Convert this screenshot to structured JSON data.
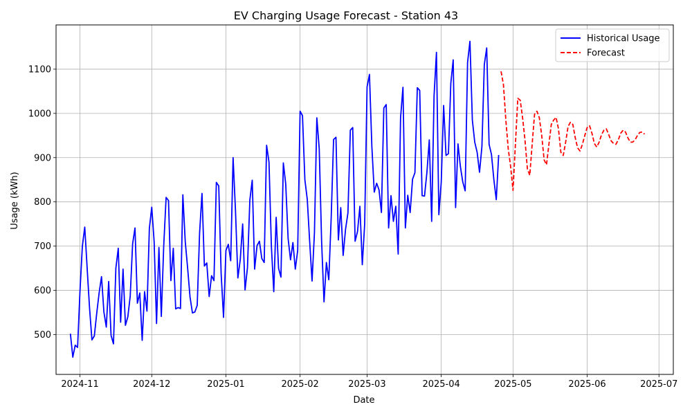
{
  "chart_data": {
    "type": "line",
    "title": "EV Charging Usage Forecast - Station 43",
    "xlabel": "Date",
    "ylabel": "Usage (kWh)",
    "x_ticks": [
      "2024-11-01",
      "2024-12-01",
      "2025-01-01",
      "2025-02-01",
      "2025-03-01",
      "2025-04-01",
      "2025-05-01",
      "2025-06-01",
      "2025-07-01"
    ],
    "x_tick_labels": [
      "2024-11",
      "2024-12",
      "2025-01",
      "2025-02",
      "2025-03",
      "2025-04",
      "2025-05",
      "2025-06",
      "2025-07"
    ],
    "y_ticks": [
      500,
      600,
      700,
      800,
      900,
      1000,
      1100
    ],
    "xlim": [
      "2024-10-22",
      "2025-07-07"
    ],
    "ylim": [
      410,
      1200
    ],
    "grid": true,
    "legend_position": "top-right",
    "series": [
      {
        "name": "Historical Usage",
        "color": "#0000ff",
        "style": "solid",
        "points": [
          [
            "2024-10-28",
            502
          ],
          [
            "2024-10-29",
            449
          ],
          [
            "2024-10-30",
            476
          ],
          [
            "2024-10-31",
            471
          ],
          [
            "2024-11-01",
            598
          ],
          [
            "2024-11-02",
            700
          ],
          [
            "2024-11-03",
            743
          ],
          [
            "2024-11-04",
            650
          ],
          [
            "2024-11-05",
            560
          ],
          [
            "2024-11-06",
            488
          ],
          [
            "2024-11-07",
            497
          ],
          [
            "2024-11-08",
            548
          ],
          [
            "2024-11-09",
            594
          ],
          [
            "2024-11-10",
            631
          ],
          [
            "2024-11-11",
            551
          ],
          [
            "2024-11-12",
            517
          ],
          [
            "2024-11-13",
            620
          ],
          [
            "2024-11-14",
            498
          ],
          [
            "2024-11-15",
            479
          ],
          [
            "2024-11-16",
            650
          ],
          [
            "2024-11-17",
            695
          ],
          [
            "2024-11-18",
            528
          ],
          [
            "2024-11-19",
            648
          ],
          [
            "2024-11-20",
            521
          ],
          [
            "2024-11-21",
            540
          ],
          [
            "2024-11-22",
            587
          ],
          [
            "2024-11-23",
            705
          ],
          [
            "2024-11-24",
            741
          ],
          [
            "2024-11-25",
            571
          ],
          [
            "2024-11-26",
            594
          ],
          [
            "2024-11-27",
            487
          ],
          [
            "2024-11-28",
            597
          ],
          [
            "2024-11-29",
            553
          ],
          [
            "2024-11-30",
            740
          ],
          [
            "2024-12-01",
            788
          ],
          [
            "2024-12-02",
            710
          ],
          [
            "2024-12-03",
            525
          ],
          [
            "2024-12-04",
            697
          ],
          [
            "2024-12-05",
            541
          ],
          [
            "2024-12-06",
            700
          ],
          [
            "2024-12-07",
            810
          ],
          [
            "2024-12-08",
            803
          ],
          [
            "2024-12-09",
            622
          ],
          [
            "2024-12-10",
            695
          ],
          [
            "2024-12-11",
            558
          ],
          [
            "2024-12-12",
            561
          ],
          [
            "2024-12-13",
            559
          ],
          [
            "2024-12-14",
            816
          ],
          [
            "2024-12-15",
            710
          ],
          [
            "2024-12-16",
            650
          ],
          [
            "2024-12-17",
            585
          ],
          [
            "2024-12-18",
            549
          ],
          [
            "2024-12-19",
            551
          ],
          [
            "2024-12-20",
            566
          ],
          [
            "2024-12-21",
            730
          ],
          [
            "2024-12-22",
            819
          ],
          [
            "2024-12-23",
            655
          ],
          [
            "2024-12-24",
            662
          ],
          [
            "2024-12-25",
            586
          ],
          [
            "2024-12-26",
            633
          ],
          [
            "2024-12-27",
            622
          ],
          [
            "2024-12-28",
            844
          ],
          [
            "2024-12-29",
            836
          ],
          [
            "2024-12-30",
            638
          ],
          [
            "2024-12-31",
            539
          ],
          [
            "2025-01-01",
            690
          ],
          [
            "2025-01-02",
            704
          ],
          [
            "2025-01-03",
            667
          ],
          [
            "2025-01-04",
            900
          ],
          [
            "2025-01-05",
            780
          ],
          [
            "2025-01-06",
            628
          ],
          [
            "2025-01-07",
            670
          ],
          [
            "2025-01-08",
            750
          ],
          [
            "2025-01-09",
            601
          ],
          [
            "2025-01-10",
            651
          ],
          [
            "2025-01-11",
            804
          ],
          [
            "2025-01-12",
            849
          ],
          [
            "2025-01-13",
            648
          ],
          [
            "2025-01-14",
            701
          ],
          [
            "2025-01-15",
            711
          ],
          [
            "2025-01-16",
            672
          ],
          [
            "2025-01-17",
            663
          ],
          [
            "2025-01-18",
            928
          ],
          [
            "2025-01-19",
            890
          ],
          [
            "2025-01-20",
            700
          ],
          [
            "2025-01-21",
            597
          ],
          [
            "2025-01-22",
            765
          ],
          [
            "2025-01-23",
            650
          ],
          [
            "2025-01-24",
            630
          ],
          [
            "2025-01-25",
            888
          ],
          [
            "2025-01-26",
            840
          ],
          [
            "2025-01-27",
            717
          ],
          [
            "2025-01-28",
            669
          ],
          [
            "2025-01-29",
            708
          ],
          [
            "2025-01-30",
            648
          ],
          [
            "2025-01-31",
            690
          ],
          [
            "2025-02-01",
            1005
          ],
          [
            "2025-02-02",
            995
          ],
          [
            "2025-02-03",
            850
          ],
          [
            "2025-02-04",
            806
          ],
          [
            "2025-02-05",
            711
          ],
          [
            "2025-02-06",
            621
          ],
          [
            "2025-02-07",
            730
          ],
          [
            "2025-02-08",
            990
          ],
          [
            "2025-02-09",
            920
          ],
          [
            "2025-02-10",
            710
          ],
          [
            "2025-02-11",
            574
          ],
          [
            "2025-02-12",
            663
          ],
          [
            "2025-02-13",
            624
          ],
          [
            "2025-02-14",
            764
          ],
          [
            "2025-02-15",
            941
          ],
          [
            "2025-02-16",
            946
          ],
          [
            "2025-02-17",
            714
          ],
          [
            "2025-02-18",
            787
          ],
          [
            "2025-02-19",
            679
          ],
          [
            "2025-02-20",
            738
          ],
          [
            "2025-02-21",
            775
          ],
          [
            "2025-02-22",
            962
          ],
          [
            "2025-02-23",
            968
          ],
          [
            "2025-02-24",
            711
          ],
          [
            "2025-02-25",
            733
          ],
          [
            "2025-02-26",
            790
          ],
          [
            "2025-02-27",
            658
          ],
          [
            "2025-02-28",
            750
          ],
          [
            "2025-03-01",
            1060
          ],
          [
            "2025-03-02",
            1088
          ],
          [
            "2025-03-03",
            925
          ],
          [
            "2025-03-04",
            822
          ],
          [
            "2025-03-05",
            842
          ],
          [
            "2025-03-06",
            827
          ],
          [
            "2025-03-07",
            776
          ],
          [
            "2025-03-08",
            1012
          ],
          [
            "2025-03-09",
            1020
          ],
          [
            "2025-03-10",
            741
          ],
          [
            "2025-03-11",
            814
          ],
          [
            "2025-03-12",
            756
          ],
          [
            "2025-03-13",
            790
          ],
          [
            "2025-03-14",
            682
          ],
          [
            "2025-03-15",
            990
          ],
          [
            "2025-03-16",
            1059
          ],
          [
            "2025-03-17",
            741
          ],
          [
            "2025-03-18",
            815
          ],
          [
            "2025-03-19",
            776
          ],
          [
            "2025-03-20",
            851
          ],
          [
            "2025-03-21",
            866
          ],
          [
            "2025-03-22",
            1058
          ],
          [
            "2025-03-23",
            1052
          ],
          [
            "2025-03-24",
            814
          ],
          [
            "2025-03-25",
            813
          ],
          [
            "2025-03-26",
            866
          ],
          [
            "2025-03-27",
            940
          ],
          [
            "2025-03-28",
            756
          ],
          [
            "2025-03-29",
            1040
          ],
          [
            "2025-03-30",
            1138
          ],
          [
            "2025-03-31",
            771
          ],
          [
            "2025-04-01",
            845
          ],
          [
            "2025-04-02",
            1018
          ],
          [
            "2025-04-03",
            905
          ],
          [
            "2025-04-04",
            909
          ],
          [
            "2025-04-05",
            1068
          ],
          [
            "2025-04-06",
            1121
          ],
          [
            "2025-04-07",
            787
          ],
          [
            "2025-04-08",
            931
          ],
          [
            "2025-04-09",
            880
          ],
          [
            "2025-04-10",
            845
          ],
          [
            "2025-04-11",
            825
          ],
          [
            "2025-04-12",
            1115
          ],
          [
            "2025-04-13",
            1163
          ],
          [
            "2025-04-14",
            985
          ],
          [
            "2025-04-15",
            935
          ],
          [
            "2025-04-16",
            912
          ],
          [
            "2025-04-17",
            867
          ],
          [
            "2025-04-18",
            925
          ],
          [
            "2025-04-19",
            1110
          ],
          [
            "2025-04-20",
            1148
          ],
          [
            "2025-04-21",
            930
          ],
          [
            "2025-04-22",
            907
          ],
          [
            "2025-04-23",
            850
          ],
          [
            "2025-04-24",
            805
          ],
          [
            "2025-04-25",
            906
          ]
        ]
      },
      {
        "name": "Forecast",
        "color": "#ff0000",
        "style": "dashed",
        "points": [
          [
            "2025-04-26",
            1095
          ],
          [
            "2025-04-27",
            1065
          ],
          [
            "2025-04-28",
            985
          ],
          [
            "2025-04-29",
            920
          ],
          [
            "2025-04-30",
            880
          ],
          [
            "2025-05-01",
            826
          ],
          [
            "2025-05-02",
            930
          ],
          [
            "2025-05-03",
            1034
          ],
          [
            "2025-05-04",
            1030
          ],
          [
            "2025-05-05",
            990
          ],
          [
            "2025-05-06",
            940
          ],
          [
            "2025-05-07",
            875
          ],
          [
            "2025-05-08",
            860
          ],
          [
            "2025-05-09",
            930
          ],
          [
            "2025-05-10",
            998
          ],
          [
            "2025-05-11",
            1005
          ],
          [
            "2025-05-12",
            990
          ],
          [
            "2025-05-13",
            950
          ],
          [
            "2025-05-14",
            895
          ],
          [
            "2025-05-15",
            884
          ],
          [
            "2025-05-16",
            930
          ],
          [
            "2025-05-17",
            975
          ],
          [
            "2025-05-18",
            985
          ],
          [
            "2025-05-19",
            991
          ],
          [
            "2025-05-20",
            965
          ],
          [
            "2025-05-21",
            912
          ],
          [
            "2025-05-22",
            905
          ],
          [
            "2025-05-23",
            935
          ],
          [
            "2025-05-24",
            970
          ],
          [
            "2025-05-25",
            980
          ],
          [
            "2025-05-26",
            975
          ],
          [
            "2025-05-27",
            945
          ],
          [
            "2025-05-28",
            922
          ],
          [
            "2025-05-29",
            915
          ],
          [
            "2025-05-30",
            930
          ],
          [
            "2025-05-31",
            950
          ],
          [
            "2025-06-01",
            968
          ],
          [
            "2025-06-02",
            972
          ],
          [
            "2025-06-03",
            955
          ],
          [
            "2025-06-04",
            932
          ],
          [
            "2025-06-05",
            924
          ],
          [
            "2025-06-06",
            935
          ],
          [
            "2025-06-07",
            952
          ],
          [
            "2025-06-08",
            962
          ],
          [
            "2025-06-09",
            965
          ],
          [
            "2025-06-10",
            952
          ],
          [
            "2025-06-11",
            938
          ],
          [
            "2025-06-12",
            932
          ],
          [
            "2025-06-13",
            930
          ],
          [
            "2025-06-14",
            940
          ],
          [
            "2025-06-15",
            955
          ],
          [
            "2025-06-16",
            962
          ],
          [
            "2025-06-17",
            958
          ],
          [
            "2025-06-18",
            945
          ],
          [
            "2025-06-19",
            935
          ],
          [
            "2025-06-20",
            935
          ],
          [
            "2025-06-21",
            940
          ],
          [
            "2025-06-22",
            950
          ],
          [
            "2025-06-23",
            957
          ],
          [
            "2025-06-24",
            958
          ],
          [
            "2025-06-25",
            953
          ]
        ]
      }
    ]
  }
}
